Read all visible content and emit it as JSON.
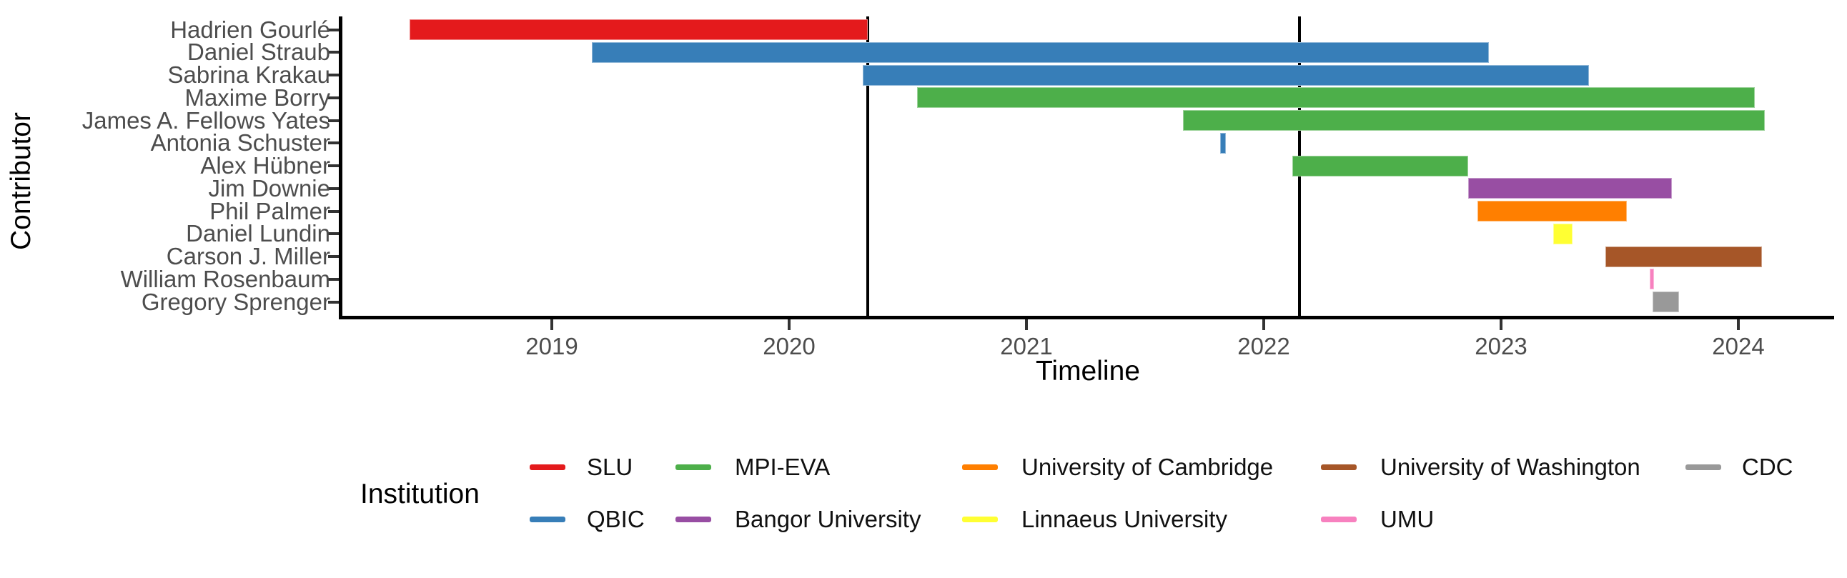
{
  "figure": {
    "y_axis_title": "Contributor",
    "x_axis_title": "Timeline",
    "legend_title": "Institution"
  },
  "chart_data": {
    "type": "bar",
    "variant": "gantt-timeline",
    "title": "",
    "xlabel": "Timeline",
    "ylabel": "Contributor",
    "x_ticks": [
      "2019",
      "2020",
      "2021",
      "2022",
      "2023",
      "2024"
    ],
    "x_tick_values": [
      2019,
      2020,
      2021,
      2022,
      2023,
      2024
    ],
    "xlim": [
      2018.11,
      2024.4
    ],
    "grid": false,
    "legend_position": "bottom",
    "milestones_x": [
      2020.33,
      2022.15
    ],
    "milestone_color": "#000000",
    "axis_text_color": "#4d4d4d",
    "institutions": [
      {
        "name": "SLU",
        "color": "#E41A1C"
      },
      {
        "name": "QBIC",
        "color": "#377EB8"
      },
      {
        "name": "MPI-EVA",
        "color": "#4DAF4A"
      },
      {
        "name": "Bangor University",
        "color": "#984EA3"
      },
      {
        "name": "University of Cambridge",
        "color": "#FF7F00"
      },
      {
        "name": "Linnaeus University",
        "color": "#FFFF33"
      },
      {
        "name": "University of Washington",
        "color": "#A65628"
      },
      {
        "name": "UMU",
        "color": "#F781BF"
      },
      {
        "name": "CDC",
        "color": "#999999"
      }
    ],
    "contributors": [
      {
        "name": "Hadrien Gourlé",
        "institution": "SLU",
        "start": 2018.4,
        "end": 2020.33
      },
      {
        "name": "Daniel Straub",
        "institution": "QBIC",
        "start": 2019.17,
        "end": 2022.95
      },
      {
        "name": "Sabrina Krakau",
        "institution": "QBIC",
        "start": 2020.31,
        "end": 2023.37
      },
      {
        "name": "Maxime Borry",
        "institution": "MPI-EVA",
        "start": 2020.54,
        "end": 2024.07
      },
      {
        "name": "James A. Fellows Yates",
        "institution": "MPI-EVA",
        "start": 2021.66,
        "end": 2024.11
      },
      {
        "name": "Antonia Schuster",
        "institution": "QBIC",
        "start": 2021.815,
        "end": 2021.84
      },
      {
        "name": "Alex Hübner",
        "institution": "MPI-EVA",
        "start": 2022.12,
        "end": 2022.86
      },
      {
        "name": "Jim Downie",
        "institution": "Bangor University",
        "start": 2022.86,
        "end": 2023.72
      },
      {
        "name": "Phil Palmer",
        "institution": "University of Cambridge",
        "start": 2022.9,
        "end": 2023.53
      },
      {
        "name": "Daniel Lundin",
        "institution": "Linnaeus University",
        "start": 2023.22,
        "end": 2023.3
      },
      {
        "name": "Carson J. Miller",
        "institution": "University of Washington",
        "start": 2023.44,
        "end": 2024.1
      },
      {
        "name": "William Rosenbaum",
        "institution": "UMU",
        "start": 2023.625,
        "end": 2023.645
      },
      {
        "name": "Gregory Sprenger",
        "institution": "CDC",
        "start": 2023.64,
        "end": 2023.75
      }
    ],
    "legend_entries": [
      "SLU",
      "QBIC",
      "MPI-EVA",
      "Bangor University",
      "University of Cambridge",
      "Linnaeus University",
      "University of Washington",
      "UMU",
      "CDC"
    ]
  }
}
